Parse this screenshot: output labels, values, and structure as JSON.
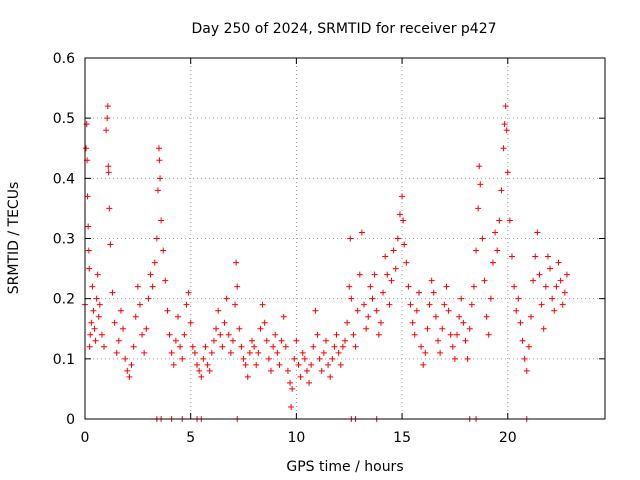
{
  "chart_data": {
    "type": "scatter",
    "title": "Day 250 of 2024, SRMTID for receiver p427",
    "xlabel": "GPS time / hours",
    "ylabel": "SRMTID / TECUs",
    "xlim": [
      0,
      24.6
    ],
    "ylim": [
      0,
      0.6
    ],
    "xticks": [
      0,
      5,
      10,
      15,
      20
    ],
    "xtick_labels": [
      "0",
      "5",
      "10",
      "15",
      "20"
    ],
    "yticks": [
      0,
      0.1,
      0.2,
      0.3,
      0.4,
      0.5,
      0.6
    ],
    "ytick_labels": [
      "0",
      "0.1",
      "0.2",
      "0.3",
      "0.4",
      "0.5",
      "0.6"
    ],
    "grid": true,
    "marker": "+",
    "series_color": "#ff0000",
    "series": [
      {
        "name": "SRMTID",
        "points": [
          [
            0.0,
            0.19
          ],
          [
            0.05,
            0.45
          ],
          [
            0.08,
            0.49
          ],
          [
            0.1,
            0.43
          ],
          [
            0.12,
            0.37
          ],
          [
            0.15,
            0.32
          ],
          [
            0.18,
            0.28
          ],
          [
            0.2,
            0.25
          ],
          [
            0.22,
            0.12
          ],
          [
            0.25,
            0.14
          ],
          [
            0.3,
            0.16
          ],
          [
            0.35,
            0.22
          ],
          [
            0.4,
            0.18
          ],
          [
            0.45,
            0.15
          ],
          [
            0.5,
            0.13
          ],
          [
            0.55,
            0.2
          ],
          [
            0.6,
            0.24
          ],
          [
            0.65,
            0.17
          ],
          [
            0.7,
            0.19
          ],
          [
            0.8,
            0.14
          ],
          [
            0.9,
            0.12
          ],
          [
            1.0,
            0.48
          ],
          [
            1.05,
            0.5
          ],
          [
            1.08,
            0.52
          ],
          [
            1.1,
            0.42
          ],
          [
            1.12,
            0.41
          ],
          [
            1.15,
            0.35
          ],
          [
            1.2,
            0.29
          ],
          [
            1.3,
            0.21
          ],
          [
            1.4,
            0.16
          ],
          [
            1.5,
            0.11
          ],
          [
            1.6,
            0.13
          ],
          [
            1.7,
            0.18
          ],
          [
            1.8,
            0.15
          ],
          [
            1.9,
            0.1
          ],
          [
            2.0,
            0.08
          ],
          [
            2.1,
            0.07
          ],
          [
            2.2,
            0.09
          ],
          [
            2.3,
            0.12
          ],
          [
            2.4,
            0.17
          ],
          [
            2.5,
            0.22
          ],
          [
            2.6,
            0.19
          ],
          [
            2.7,
            0.14
          ],
          [
            2.8,
            0.11
          ],
          [
            2.9,
            0.15
          ],
          [
            3.0,
            0.2
          ],
          [
            3.1,
            0.24
          ],
          [
            3.2,
            0.22
          ],
          [
            3.3,
            0.26
          ],
          [
            3.4,
            0.3
          ],
          [
            3.45,
            0.38
          ],
          [
            3.5,
            0.45
          ],
          [
            3.52,
            0.43
          ],
          [
            3.55,
            0.4
          ],
          [
            3.6,
            0.33
          ],
          [
            3.7,
            0.28
          ],
          [
            3.8,
            0.23
          ],
          [
            3.9,
            0.18
          ],
          [
            4.0,
            0.14
          ],
          [
            4.1,
            0.11
          ],
          [
            4.2,
            0.09
          ],
          [
            4.3,
            0.13
          ],
          [
            4.4,
            0.17
          ],
          [
            4.5,
            0.12
          ],
          [
            4.6,
            0.1
          ],
          [
            4.7,
            0.14
          ],
          [
            4.8,
            0.19
          ],
          [
            4.9,
            0.21
          ],
          [
            5.0,
            0.16
          ],
          [
            5.1,
            0.12
          ],
          [
            5.2,
            0.11
          ],
          [
            5.3,
            0.09
          ],
          [
            5.4,
            0.08
          ],
          [
            5.5,
            0.07
          ],
          [
            5.6,
            0.1
          ],
          [
            5.7,
            0.12
          ],
          [
            5.8,
            0.09
          ],
          [
            5.9,
            0.08
          ],
          [
            6.0,
            0.11
          ],
          [
            6.1,
            0.13
          ],
          [
            6.2,
            0.15
          ],
          [
            6.3,
            0.18
          ],
          [
            6.4,
            0.14
          ],
          [
            6.5,
            0.12
          ],
          [
            6.6,
            0.16
          ],
          [
            6.7,
            0.2
          ],
          [
            6.8,
            0.14
          ],
          [
            6.9,
            0.11
          ],
          [
            7.0,
            0.13
          ],
          [
            7.1,
            0.19
          ],
          [
            7.15,
            0.26
          ],
          [
            7.2,
            0.22
          ],
          [
            7.3,
            0.15
          ],
          [
            7.4,
            0.12
          ],
          [
            7.5,
            0.1
          ],
          [
            7.6,
            0.09
          ],
          [
            7.7,
            0.07
          ],
          [
            7.8,
            0.11
          ],
          [
            7.9,
            0.13
          ],
          [
            8.0,
            0.12
          ],
          [
            8.1,
            0.09
          ],
          [
            8.2,
            0.11
          ],
          [
            8.3,
            0.15
          ],
          [
            8.4,
            0.19
          ],
          [
            8.5,
            0.16
          ],
          [
            8.6,
            0.13
          ],
          [
            8.7,
            0.1
          ],
          [
            8.8,
            0.08
          ],
          [
            8.9,
            0.12
          ],
          [
            9.0,
            0.14
          ],
          [
            9.1,
            0.11
          ],
          [
            9.2,
            0.09
          ],
          [
            9.3,
            0.13
          ],
          [
            9.4,
            0.17
          ],
          [
            9.5,
            0.12
          ],
          [
            9.6,
            0.08
          ],
          [
            9.7,
            0.06
          ],
          [
            9.75,
            0.02
          ],
          [
            9.8,
            0.05
          ],
          [
            9.9,
            0.1
          ],
          [
            10.0,
            0.13
          ],
          [
            10.1,
            0.09
          ],
          [
            10.2,
            0.07
          ],
          [
            10.3,
            0.11
          ],
          [
            10.4,
            0.1
          ],
          [
            10.5,
            0.08
          ],
          [
            10.6,
            0.06
          ],
          [
            10.7,
            0.09
          ],
          [
            10.8,
            0.12
          ],
          [
            10.9,
            0.18
          ],
          [
            11.0,
            0.14
          ],
          [
            11.1,
            0.1
          ],
          [
            11.2,
            0.08
          ],
          [
            11.3,
            0.11
          ],
          [
            11.4,
            0.13
          ],
          [
            11.5,
            0.09
          ],
          [
            11.6,
            0.07
          ],
          [
            11.7,
            0.1
          ],
          [
            11.8,
            0.12
          ],
          [
            11.9,
            0.14
          ],
          [
            12.0,
            0.11
          ],
          [
            12.1,
            0.09
          ],
          [
            12.2,
            0.12
          ],
          [
            12.3,
            0.13
          ],
          [
            12.4,
            0.16
          ],
          [
            12.5,
            0.22
          ],
          [
            12.55,
            0.3
          ],
          [
            12.6,
            0.2
          ],
          [
            12.7,
            0.14
          ],
          [
            12.8,
            0.12
          ],
          [
            12.9,
            0.18
          ],
          [
            13.0,
            0.24
          ],
          [
            13.1,
            0.31
          ],
          [
            13.2,
            0.19
          ],
          [
            13.3,
            0.15
          ],
          [
            13.4,
            0.17
          ],
          [
            13.5,
            0.22
          ],
          [
            13.6,
            0.2
          ],
          [
            13.7,
            0.24
          ],
          [
            13.8,
            0.18
          ],
          [
            13.9,
            0.14
          ],
          [
            14.0,
            0.16
          ],
          [
            14.1,
            0.21
          ],
          [
            14.2,
            0.27
          ],
          [
            14.3,
            0.24
          ],
          [
            14.4,
            0.19
          ],
          [
            14.5,
            0.23
          ],
          [
            14.6,
            0.28
          ],
          [
            14.7,
            0.25
          ],
          [
            14.8,
            0.3
          ],
          [
            14.9,
            0.34
          ],
          [
            15.0,
            0.37
          ],
          [
            15.05,
            0.33
          ],
          [
            15.1,
            0.29
          ],
          [
            15.2,
            0.26
          ],
          [
            15.3,
            0.22
          ],
          [
            15.4,
            0.19
          ],
          [
            15.5,
            0.16
          ],
          [
            15.6,
            0.14
          ],
          [
            15.7,
            0.18
          ],
          [
            15.8,
            0.21
          ],
          [
            15.9,
            0.12
          ],
          [
            16.0,
            0.09
          ],
          [
            16.1,
            0.11
          ],
          [
            16.2,
            0.15
          ],
          [
            16.3,
            0.19
          ],
          [
            16.4,
            0.23
          ],
          [
            16.5,
            0.21
          ],
          [
            16.6,
            0.17
          ],
          [
            16.7,
            0.13
          ],
          [
            16.8,
            0.11
          ],
          [
            16.9,
            0.15
          ],
          [
            17.0,
            0.19
          ],
          [
            17.1,
            0.22
          ],
          [
            17.2,
            0.18
          ],
          [
            17.3,
            0.14
          ],
          [
            17.4,
            0.12
          ],
          [
            17.5,
            0.1
          ],
          [
            17.6,
            0.14
          ],
          [
            17.7,
            0.17
          ],
          [
            17.8,
            0.2
          ],
          [
            17.9,
            0.16
          ],
          [
            18.0,
            0.13
          ],
          [
            18.1,
            0.1
          ],
          [
            18.2,
            0.15
          ],
          [
            18.3,
            0.19
          ],
          [
            18.4,
            0.22
          ],
          [
            18.5,
            0.28
          ],
          [
            18.6,
            0.35
          ],
          [
            18.65,
            0.42
          ],
          [
            18.7,
            0.39
          ],
          [
            18.8,
            0.3
          ],
          [
            18.9,
            0.23
          ],
          [
            19.0,
            0.17
          ],
          [
            19.1,
            0.14
          ],
          [
            19.2,
            0.2
          ],
          [
            19.3,
            0.26
          ],
          [
            19.4,
            0.31
          ],
          [
            19.5,
            0.28
          ],
          [
            19.6,
            0.33
          ],
          [
            19.7,
            0.38
          ],
          [
            19.8,
            0.45
          ],
          [
            19.85,
            0.49
          ],
          [
            19.9,
            0.52
          ],
          [
            19.95,
            0.48
          ],
          [
            20.0,
            0.41
          ],
          [
            20.1,
            0.33
          ],
          [
            20.2,
            0.27
          ],
          [
            20.3,
            0.22
          ],
          [
            20.4,
            0.18
          ],
          [
            20.5,
            0.2
          ],
          [
            20.6,
            0.16
          ],
          [
            20.7,
            0.13
          ],
          [
            20.8,
            0.1
          ],
          [
            20.9,
            0.08
          ],
          [
            21.0,
            0.12
          ],
          [
            21.1,
            0.17
          ],
          [
            21.2,
            0.23
          ],
          [
            21.3,
            0.27
          ],
          [
            21.4,
            0.31
          ],
          [
            21.5,
            0.24
          ],
          [
            21.6,
            0.19
          ],
          [
            21.7,
            0.15
          ],
          [
            21.8,
            0.22
          ],
          [
            21.9,
            0.27
          ],
          [
            22.0,
            0.25
          ],
          [
            22.1,
            0.2
          ],
          [
            22.2,
            0.18
          ],
          [
            22.3,
            0.22
          ],
          [
            22.4,
            0.26
          ],
          [
            22.5,
            0.23
          ],
          [
            22.6,
            0.19
          ],
          [
            22.7,
            0.21
          ],
          [
            22.8,
            0.24
          ]
        ]
      }
    ],
    "zero_points_x": [
      3.4,
      3.6,
      4.1,
      4.6,
      5.3,
      5.5,
      7.2,
      12.6,
      12.8,
      13.8,
      18.2,
      18.5,
      20.9
    ]
  }
}
